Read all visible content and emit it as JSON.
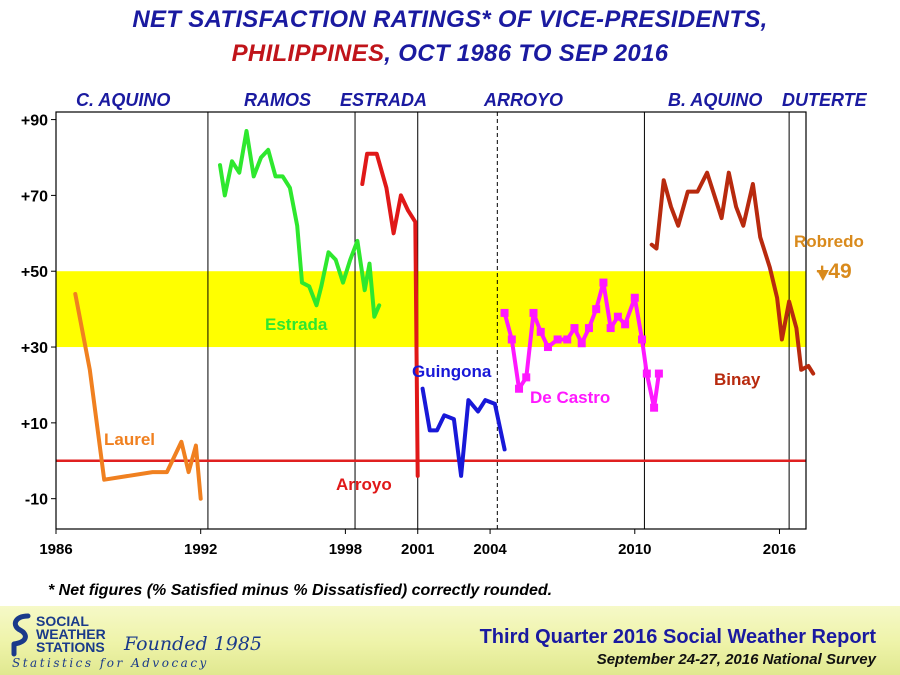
{
  "title": {
    "line1": "NET SATISFACTION  RATINGS* OF VICE-PRESIDENTS,",
    "line2_red": "PHILIPPINES",
    "line2_rest": ",  OCT 1986 TO SEP 2016"
  },
  "presidents": [
    "C. AQUINO",
    "RAMOS",
    "ESTRADA",
    "ARROYO",
    "B. AQUINO",
    "DUTERTE"
  ],
  "footnote": "* Net figures (% Satisfied minus % Dissatisfied) correctly rounded.",
  "footer": {
    "logo_lines": [
      "SOCIAL",
      "WEATHER",
      "STATIONS"
    ],
    "founded": "Founded 1985",
    "tagline": "Statistics for Advocacy",
    "report_title": "Third Quarter 2016 Social Weather Report",
    "survey": "September 24-27, 2016 National Survey"
  },
  "chart_data": {
    "type": "line",
    "ylim": [
      -18,
      92
    ],
    "xlim": [
      1986.0,
      2017.1
    ],
    "ytick_labels": [
      "+90",
      "+70",
      "+50",
      "+30",
      "+10",
      "-10"
    ],
    "yticks": [
      90,
      70,
      50,
      30,
      10,
      -10
    ],
    "xticks": [
      1986,
      1992,
      1998,
      2001,
      2004,
      2010,
      2016
    ],
    "xtick_labels": [
      "1986",
      "1992",
      "1998",
      "2001",
      "2004",
      "2010",
      "2016"
    ],
    "vertical_lines": [
      {
        "year": 1992.3,
        "style": "solid"
      },
      {
        "year": 1998.4,
        "style": "solid"
      },
      {
        "year": 2001.0,
        "style": "solid"
      },
      {
        "year": 2004.3,
        "style": "dashed"
      },
      {
        "year": 2010.4,
        "style": "solid"
      },
      {
        "year": 2016.4,
        "style": "solid"
      }
    ],
    "band": {
      "from": 30,
      "to": 50,
      "color": "#ffff00"
    },
    "zero_line": {
      "value": 0,
      "color": "#e02020"
    },
    "series": [
      {
        "name": "Laurel",
        "color": "#f08020",
        "points": [
          [
            1986.8,
            44
          ],
          [
            1987.4,
            24
          ],
          [
            1988.0,
            -5
          ],
          [
            1990.0,
            -3
          ],
          [
            1990.6,
            -3
          ],
          [
            1991.2,
            5
          ],
          [
            1991.5,
            -3
          ],
          [
            1991.8,
            4
          ],
          [
            1992.0,
            -10
          ]
        ]
      },
      {
        "name": "Estrada",
        "color": "#2ee82e",
        "points": [
          [
            1992.8,
            78
          ],
          [
            1993.0,
            70
          ],
          [
            1993.3,
            79
          ],
          [
            1993.6,
            76
          ],
          [
            1993.9,
            87
          ],
          [
            1994.2,
            75
          ],
          [
            1994.5,
            80
          ],
          [
            1994.8,
            82
          ],
          [
            1995.1,
            75
          ],
          [
            1995.4,
            75
          ],
          [
            1995.7,
            72
          ],
          [
            1996.0,
            62
          ],
          [
            1996.2,
            47
          ],
          [
            1996.5,
            46
          ],
          [
            1996.8,
            41
          ],
          [
            1997.0,
            46
          ],
          [
            1997.3,
            55
          ],
          [
            1997.6,
            53
          ],
          [
            1997.9,
            47
          ],
          [
            1998.2,
            53
          ],
          [
            1998.5,
            58
          ],
          [
            1998.8,
            45
          ],
          [
            1999.0,
            52
          ],
          [
            1999.2,
            38
          ],
          [
            1999.4,
            41
          ]
        ]
      },
      {
        "name": "Arroyo",
        "color": "#e01818",
        "points": [
          [
            1998.7,
            73
          ],
          [
            1998.9,
            81
          ],
          [
            1999.3,
            81
          ],
          [
            1999.7,
            72
          ],
          [
            2000.0,
            60
          ],
          [
            2000.3,
            70
          ],
          [
            2000.6,
            66
          ],
          [
            2000.9,
            63
          ],
          [
            2001.0,
            -4
          ]
        ]
      },
      {
        "name": "Guingona",
        "color": "#1818d8",
        "points": [
          [
            2001.2,
            19
          ],
          [
            2001.5,
            8
          ],
          [
            2001.8,
            8
          ],
          [
            2002.1,
            12
          ],
          [
            2002.5,
            11
          ],
          [
            2002.8,
            -4
          ],
          [
            2003.1,
            16
          ],
          [
            2003.5,
            13
          ],
          [
            2003.8,
            16
          ],
          [
            2004.2,
            15
          ],
          [
            2004.6,
            3
          ]
        ]
      },
      {
        "name": "De Castro",
        "color": "#ff18ff",
        "points": [
          [
            2004.6,
            39
          ],
          [
            2004.9,
            32
          ],
          [
            2005.2,
            19
          ],
          [
            2005.5,
            22
          ],
          [
            2005.8,
            39
          ],
          [
            2006.1,
            34
          ],
          [
            2006.4,
            30
          ],
          [
            2006.8,
            32
          ],
          [
            2007.2,
            32
          ],
          [
            2007.5,
            35
          ],
          [
            2007.8,
            31
          ],
          [
            2008.1,
            35
          ],
          [
            2008.4,
            40
          ],
          [
            2008.7,
            47
          ],
          [
            2009.0,
            35
          ],
          [
            2009.3,
            38
          ],
          [
            2009.6,
            36
          ],
          [
            2010.0,
            43
          ],
          [
            2010.3,
            32
          ],
          [
            2010.5,
            23
          ],
          [
            2010.8,
            14
          ],
          [
            2011.0,
            23
          ]
        ]
      },
      {
        "name": "Binay",
        "color": "#b82a0e",
        "points": [
          [
            2010.7,
            57
          ],
          [
            2010.9,
            56
          ],
          [
            2011.2,
            74
          ],
          [
            2011.5,
            67
          ],
          [
            2011.8,
            62
          ],
          [
            2012.2,
            71
          ],
          [
            2012.6,
            71
          ],
          [
            2013.0,
            76
          ],
          [
            2013.4,
            68
          ],
          [
            2013.6,
            64
          ],
          [
            2013.9,
            76
          ],
          [
            2014.2,
            67
          ],
          [
            2014.5,
            62
          ],
          [
            2014.9,
            73
          ],
          [
            2015.2,
            59
          ],
          [
            2015.6,
            51
          ],
          [
            2015.9,
            43
          ],
          [
            2016.1,
            32
          ],
          [
            2016.4,
            42
          ],
          [
            2016.7,
            35
          ],
          [
            2016.9,
            24
          ],
          [
            2017.2,
            25
          ],
          [
            2017.4,
            23
          ]
        ]
      },
      {
        "name": "Robredo",
        "color": "#d98a1c",
        "points": [
          [
            2017.8,
            49
          ]
        ]
      }
    ],
    "annotations": [
      {
        "text": "Laurel",
        "color": "#f08020"
      },
      {
        "text": "Estrada",
        "color": "#2ee82e"
      },
      {
        "text": "Arroyo",
        "color": "#e01818"
      },
      {
        "text": "Guingona",
        "color": "#1818d8"
      },
      {
        "text": "De Castro",
        "color": "#ff18ff"
      },
      {
        "text": "Binay",
        "color": "#b82a0e"
      },
      {
        "text": "Robredo",
        "color": "#d98a1c"
      },
      {
        "text": "+49",
        "color": "#d98a1c"
      }
    ]
  }
}
